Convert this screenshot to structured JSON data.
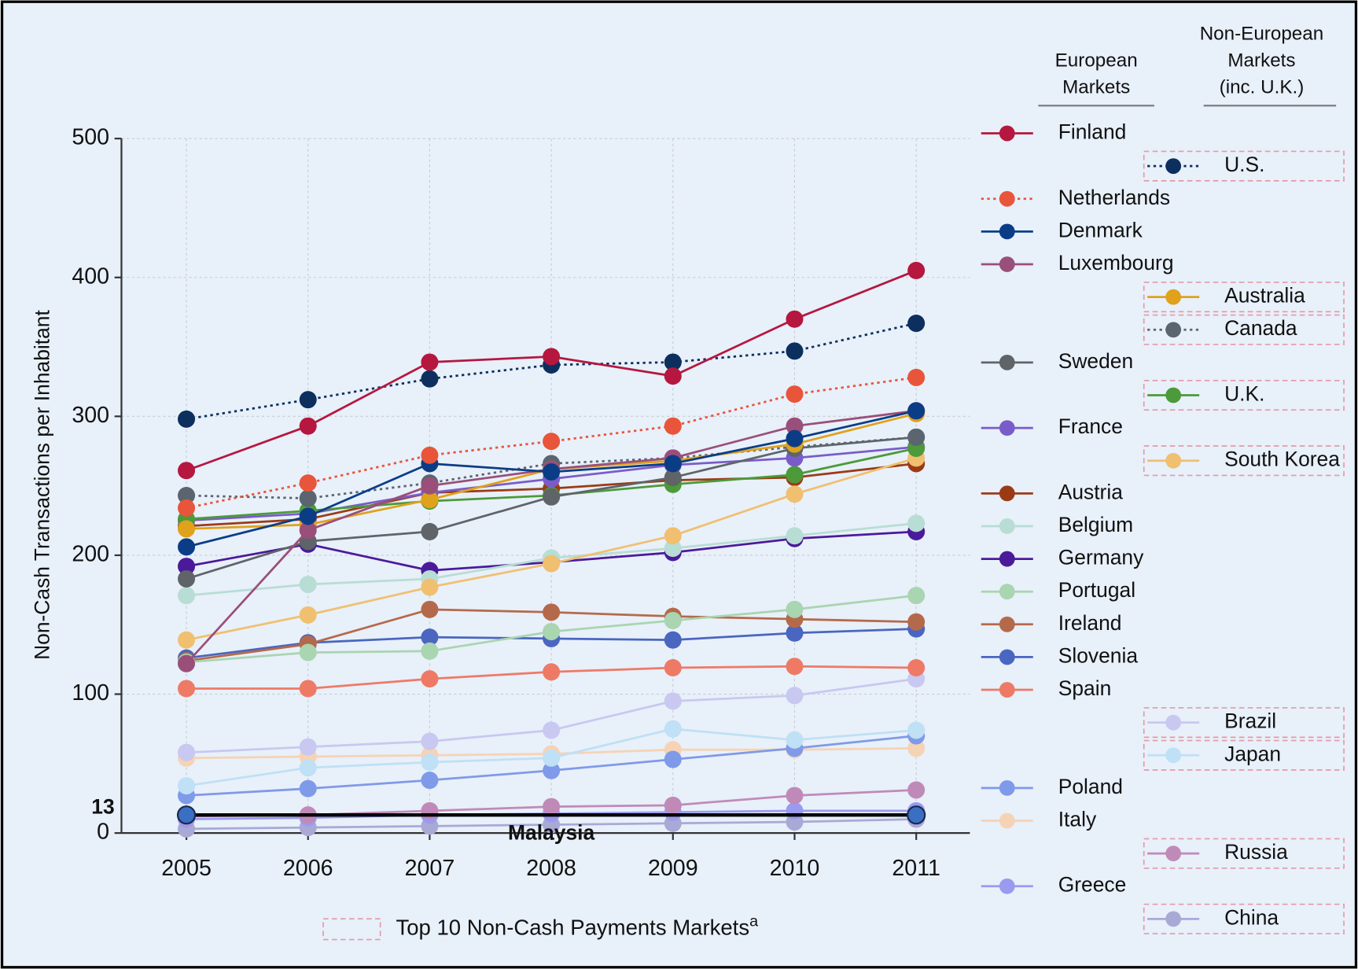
{
  "chart_data": {
    "type": "line",
    "y_label": "Non-Cash Transactions per Inhabitant",
    "categories": [
      "2005",
      "2006",
      "2007",
      "2008",
      "2009",
      "2010",
      "2011"
    ],
    "ylim": [
      0,
      500
    ],
    "yticks": [
      0,
      100,
      200,
      300,
      400,
      500
    ],
    "grid": true,
    "legend_headers": [
      [
        "European",
        "Markets"
      ],
      [
        "Non-European",
        "Markets",
        "(inc. U.K.)"
      ]
    ],
    "footnote": "Top 10 Non-Cash Payments Markets",
    "footnote_mark": "a",
    "series": [
      {
        "name": "Finland",
        "color": "#b5173f",
        "column": 1,
        "values": [
          261,
          293,
          339,
          343,
          329,
          370,
          405
        ]
      },
      {
        "name": "U.S.",
        "color": "#0c2f5e",
        "column": 2,
        "dash": true,
        "top10": true,
        "values": [
          298,
          312,
          327,
          337,
          339,
          347,
          367
        ]
      },
      {
        "name": "Netherlands",
        "color": "#e8553a",
        "column": 1,
        "dash": true,
        "values": [
          234,
          252,
          272,
          282,
          293,
          316,
          328
        ]
      },
      {
        "name": "Denmark",
        "color": "#0b3d86",
        "column": 1,
        "values": [
          206,
          228,
          266,
          260,
          266,
          284,
          304
        ]
      },
      {
        "name": "Luxembourg",
        "color": "#9a4f7a",
        "column": 1,
        "values": [
          122,
          218,
          250,
          262,
          270,
          293,
          304
        ]
      },
      {
        "name": "Australia",
        "color": "#e0a11b",
        "column": 2,
        "top10": true,
        "values": [
          219,
          222,
          240,
          262,
          268,
          280,
          302
        ]
      },
      {
        "name": "Canada",
        "color": "#5a6570",
        "column": 2,
        "dash": true,
        "top10": true,
        "values": [
          243,
          241,
          252,
          266,
          270,
          278,
          285
        ]
      },
      {
        "name": "Sweden",
        "color": "#5f6468",
        "column": 1,
        "values": [
          183,
          210,
          217,
          242,
          256,
          277,
          285
        ]
      },
      {
        "name": "U.K.",
        "color": "#4c9a3a",
        "column": 2,
        "top10": true,
        "values": [
          226,
          232,
          239,
          243,
          251,
          258,
          277
        ]
      },
      {
        "name": "France",
        "color": "#7a5cc9",
        "column": 1,
        "values": [
          225,
          230,
          245,
          255,
          265,
          270,
          278
        ]
      },
      {
        "name": "South Korea",
        "color": "#f0c070",
        "column": 2,
        "top10": true,
        "values": [
          139,
          157,
          177,
          194,
          214,
          244,
          270
        ]
      },
      {
        "name": "Austria",
        "color": "#9b3b16",
        "column": 1,
        "values": [
          221,
          226,
          245,
          248,
          254,
          256,
          266
        ]
      },
      {
        "name": "Belgium",
        "color": "#b8ddd4",
        "column": 1,
        "values": [
          171,
          179,
          183,
          198,
          205,
          214,
          223
        ]
      },
      {
        "name": "Germany",
        "color": "#4b1a9a",
        "column": 1,
        "values": [
          192,
          208,
          189,
          195,
          202,
          212,
          217
        ]
      },
      {
        "name": "Portugal",
        "color": "#a9d5b0",
        "column": 1,
        "values": [
          123,
          130,
          131,
          145,
          153,
          161,
          171
        ]
      },
      {
        "name": "Ireland",
        "color": "#b46a4a",
        "column": 1,
        "values": [
          124,
          136,
          161,
          159,
          156,
          154,
          152
        ]
      },
      {
        "name": "Slovenia",
        "color": "#4a66c0",
        "column": 1,
        "values": [
          126,
          137,
          141,
          140,
          139,
          144,
          147
        ]
      },
      {
        "name": "Spain",
        "color": "#ee7a66",
        "column": 1,
        "values": [
          104,
          104,
          111,
          116,
          119,
          120,
          119
        ]
      },
      {
        "name": "Brazil",
        "color": "#c8c8f0",
        "column": 2,
        "top10": true,
        "values": [
          58,
          62,
          66,
          74,
          95,
          99,
          111
        ]
      },
      {
        "name": "Japan",
        "color": "#bfe0f5",
        "column": 2,
        "top10": true,
        "values": [
          34,
          47,
          51,
          54,
          75,
          67,
          74
        ]
      },
      {
        "name": "Poland",
        "color": "#7f9ae8",
        "column": 1,
        "values": [
          27,
          32,
          38,
          45,
          53,
          61,
          70
        ]
      },
      {
        "name": "Italy",
        "color": "#f6d3b4",
        "column": 1,
        "values": [
          54,
          55,
          56,
          57,
          60,
          60,
          61
        ]
      },
      {
        "name": "Russia",
        "color": "#c08ab8",
        "column": 2,
        "top10": true,
        "values": [
          12,
          13,
          16,
          19,
          20,
          27,
          31
        ]
      },
      {
        "name": "Greece",
        "color": "#9a9af0",
        "column": 1,
        "values": [
          10,
          11,
          13,
          14,
          15,
          16,
          16
        ]
      },
      {
        "name": "China",
        "color": "#a9a9d6",
        "column": 2,
        "top10": true,
        "values": [
          3,
          4,
          5,
          6,
          7,
          8,
          10
        ]
      }
    ],
    "annotation": {
      "label": "Malaysia",
      "value": 13,
      "color": "#3a6fc4"
    }
  }
}
